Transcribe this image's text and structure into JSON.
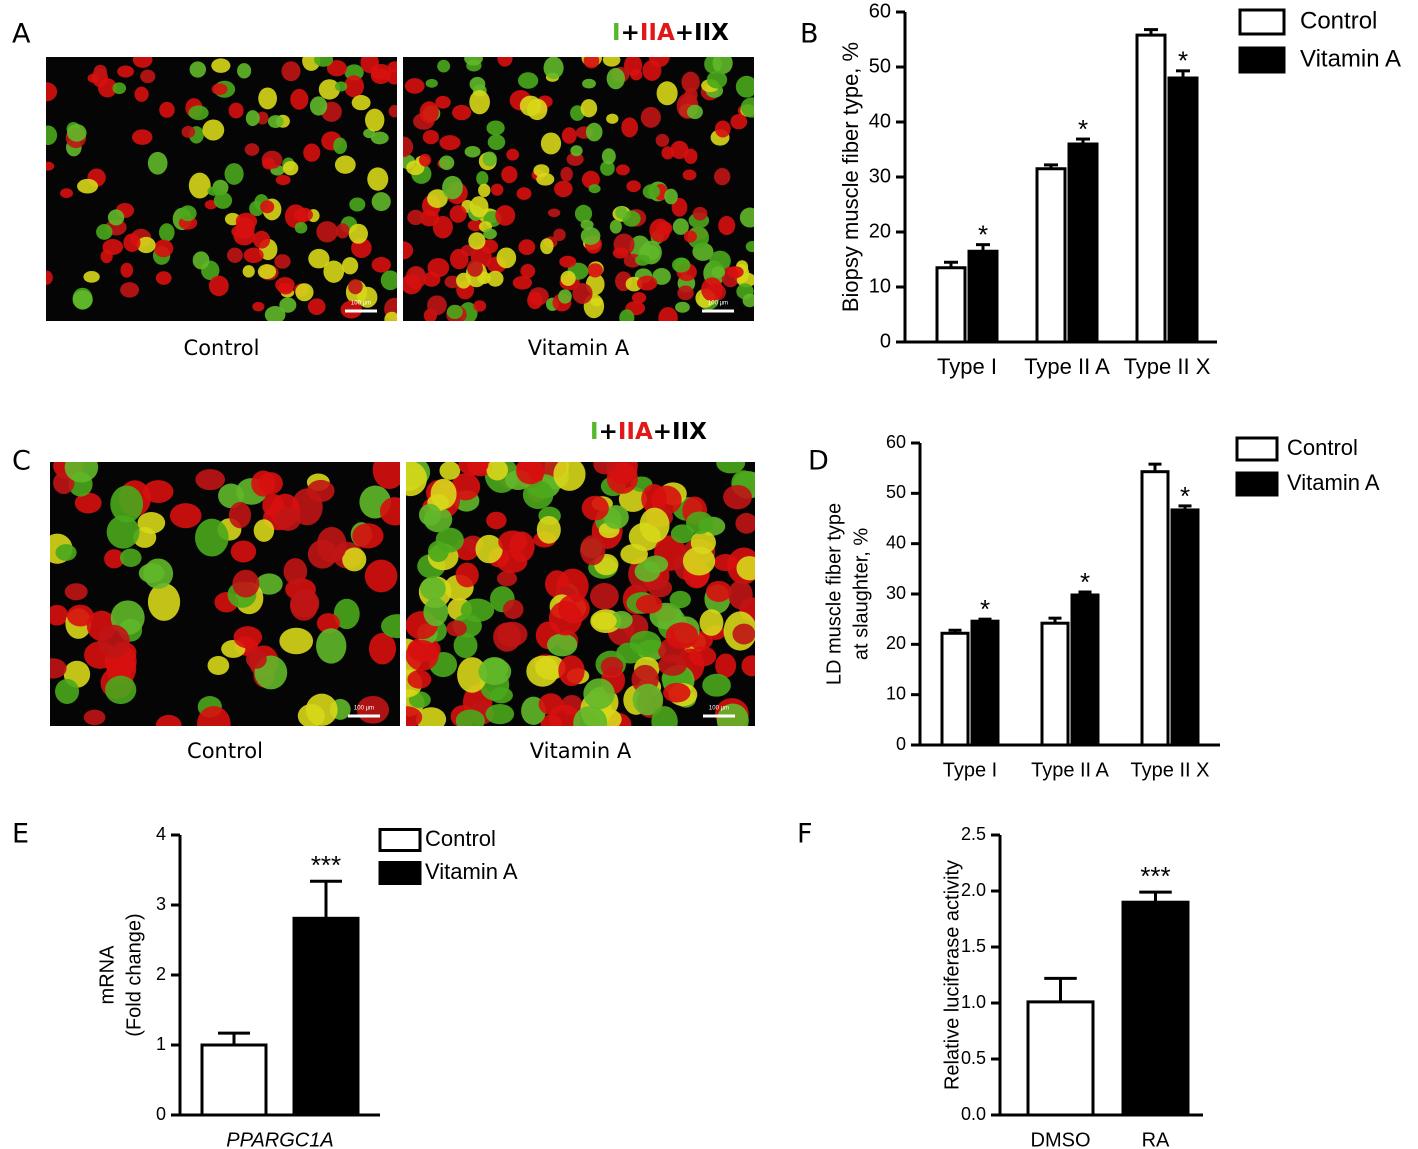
{
  "images": [
    {
      "panel": "A",
      "stain_legend": [
        {
          "text": "I",
          "color": "#55b82a"
        },
        {
          "text": "+",
          "color": "#000000"
        },
        {
          "text": "IIA",
          "color": "#e01818"
        },
        {
          "text": "+IIX",
          "color": "#000000"
        }
      ],
      "captions": [
        "Control",
        "Vitamin A"
      ],
      "scale_bar": "100 µm"
    },
    {
      "panel": "C",
      "stain_legend": [
        {
          "text": "I",
          "color": "#55b82a"
        },
        {
          "text": "+",
          "color": "#000000"
        },
        {
          "text": "IIA",
          "color": "#e01818"
        },
        {
          "text": "+IIX",
          "color": "#000000"
        }
      ],
      "captions": [
        "Control",
        "Vitamin A"
      ],
      "scale_bar": "100 µm"
    }
  ],
  "chart_data": [
    {
      "type": "bar",
      "panel": "B",
      "ylabel": "Biopsy muscle fiber type, %",
      "categories": [
        "Type I",
        "Type II A",
        "Type II X"
      ],
      "series": [
        {
          "name": "Control",
          "color": "#ffffff",
          "values": [
            13.5,
            31.5,
            55.8
          ],
          "errors": [
            1.0,
            0.7,
            1.0
          ]
        },
        {
          "name": "Vitamin A",
          "color": "#000000",
          "values": [
            16.5,
            36.0,
            48.0
          ],
          "errors": [
            1.2,
            0.9,
            1.3
          ],
          "annotations": [
            "*",
            "*",
            "*"
          ]
        }
      ],
      "ylim": [
        0,
        60
      ],
      "yticks": [
        0,
        10,
        20,
        30,
        40,
        50,
        60
      ]
    },
    {
      "type": "bar",
      "panel": "D",
      "ylabel": [
        "LD muscle fiber type",
        "at slaughter, %"
      ],
      "categories": [
        "Type I",
        "Type II A",
        "Type II X"
      ],
      "series": [
        {
          "name": "Control",
          "color": "#ffffff",
          "values": [
            22.2,
            24.2,
            54.3
          ],
          "errors": [
            0.6,
            1.0,
            1.5
          ]
        },
        {
          "name": "Vitamin A",
          "color": "#000000",
          "values": [
            24.6,
            29.8,
            46.7
          ],
          "errors": [
            0.4,
            0.6,
            0.8
          ],
          "annotations": [
            "*",
            "*",
            "*"
          ]
        }
      ],
      "ylim": [
        0,
        60
      ],
      "yticks": [
        0,
        10,
        20,
        30,
        40,
        50,
        60
      ]
    },
    {
      "type": "bar",
      "panel": "E",
      "ylabel": [
        "mRNA",
        "(Fold change)"
      ],
      "categories": [
        "PPARGC1A"
      ],
      "series": [
        {
          "name": "Control",
          "color": "#ffffff",
          "values": [
            1.0
          ],
          "errors": [
            0.17
          ]
        },
        {
          "name": "Vitamin A",
          "color": "#000000",
          "values": [
            2.81
          ],
          "errors": [
            0.53
          ],
          "annotations": [
            "***"
          ]
        }
      ],
      "ylim": [
        0,
        4
      ],
      "yticks": [
        0,
        1,
        2,
        3,
        4
      ]
    },
    {
      "type": "bar",
      "panel": "F",
      "ylabel": "Relative luciferase activity",
      "categories": [
        "DMSO",
        "RA"
      ],
      "series": [
        {
          "colors": [
            "#ffffff",
            "#000000"
          ],
          "values": [
            1.01,
            1.9
          ],
          "errors": [
            0.21,
            0.09
          ],
          "annotations": [
            null,
            "***"
          ]
        }
      ],
      "ylim": [
        0,
        2.5
      ],
      "yticks": [
        {
          "value": 0,
          "label": "0.0"
        },
        {
          "value": 0.5,
          "label": "0.5"
        },
        {
          "value": 1.0,
          "label": "1.0"
        },
        {
          "value": 1.5,
          "label": "1.5"
        },
        {
          "value": 2.0,
          "label": "2.0"
        },
        {
          "value": 2.5,
          "label": "2.5"
        }
      ]
    }
  ]
}
